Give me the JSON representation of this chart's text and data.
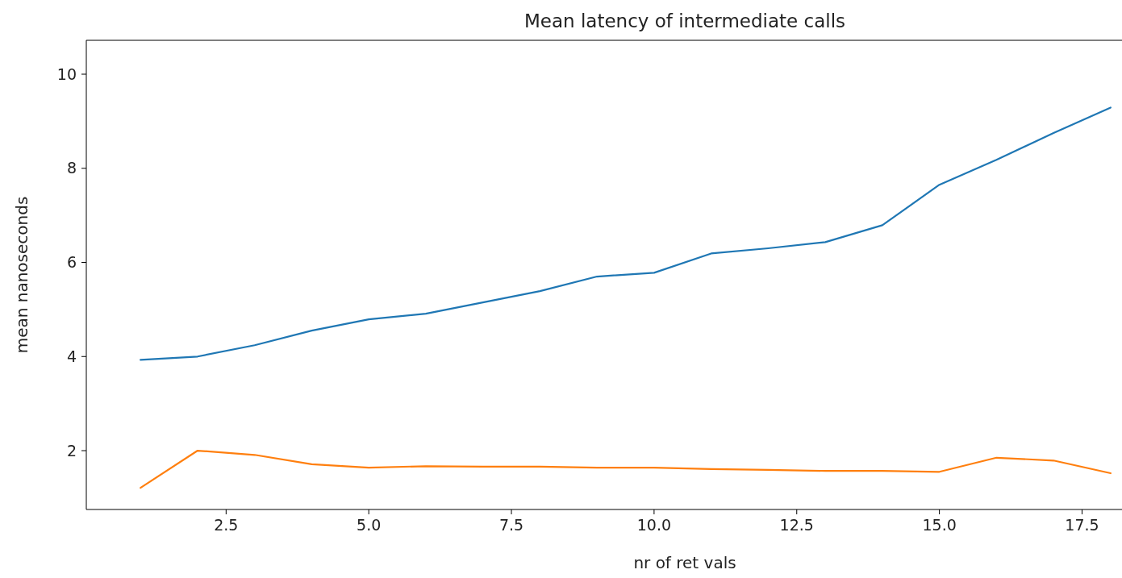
{
  "chart_data": {
    "type": "line",
    "title": "Mean latency of intermediate calls",
    "xlabel": "nr of ret vals",
    "ylabel": "mean nanoseconds",
    "x": [
      1,
      2,
      3,
      4,
      5,
      6,
      7,
      8,
      9,
      10,
      11,
      12,
      13,
      14,
      15,
      16,
      17,
      18
    ],
    "series": [
      {
        "color": "#1f77b4",
        "values": [
          3.93,
          4.0,
          4.24,
          4.55,
          4.79,
          4.91,
          5.15,
          5.39,
          5.7,
          5.78,
          6.19,
          6.3,
          6.43,
          6.79,
          7.65,
          8.18,
          8.75,
          9.29
        ]
      },
      {
        "color": "#ff7f0e",
        "values": [
          1.21,
          2.0,
          1.91,
          1.71,
          1.64,
          1.67,
          1.66,
          1.66,
          1.64,
          1.64,
          1.61,
          1.59,
          1.57,
          1.57,
          1.55,
          1.85,
          1.79,
          1.52
        ]
      }
    ],
    "xlim": [
      0.05,
      18.2
    ],
    "ylim": [
      0.75,
      10.72
    ],
    "xticks": [
      {
        "value": 2.5,
        "label": "2.5"
      },
      {
        "value": 5,
        "label": "5.0"
      },
      {
        "value": 7.5,
        "label": "7.5"
      },
      {
        "value": 10,
        "label": "10.0"
      },
      {
        "value": 12.5,
        "label": "12.5"
      },
      {
        "value": 15,
        "label": "15.0"
      },
      {
        "value": 17.5,
        "label": "17.5"
      }
    ],
    "yticks": [
      2,
      4,
      6,
      8,
      10
    ],
    "grid": false,
    "marker": "none",
    "line_style": "solid"
  }
}
